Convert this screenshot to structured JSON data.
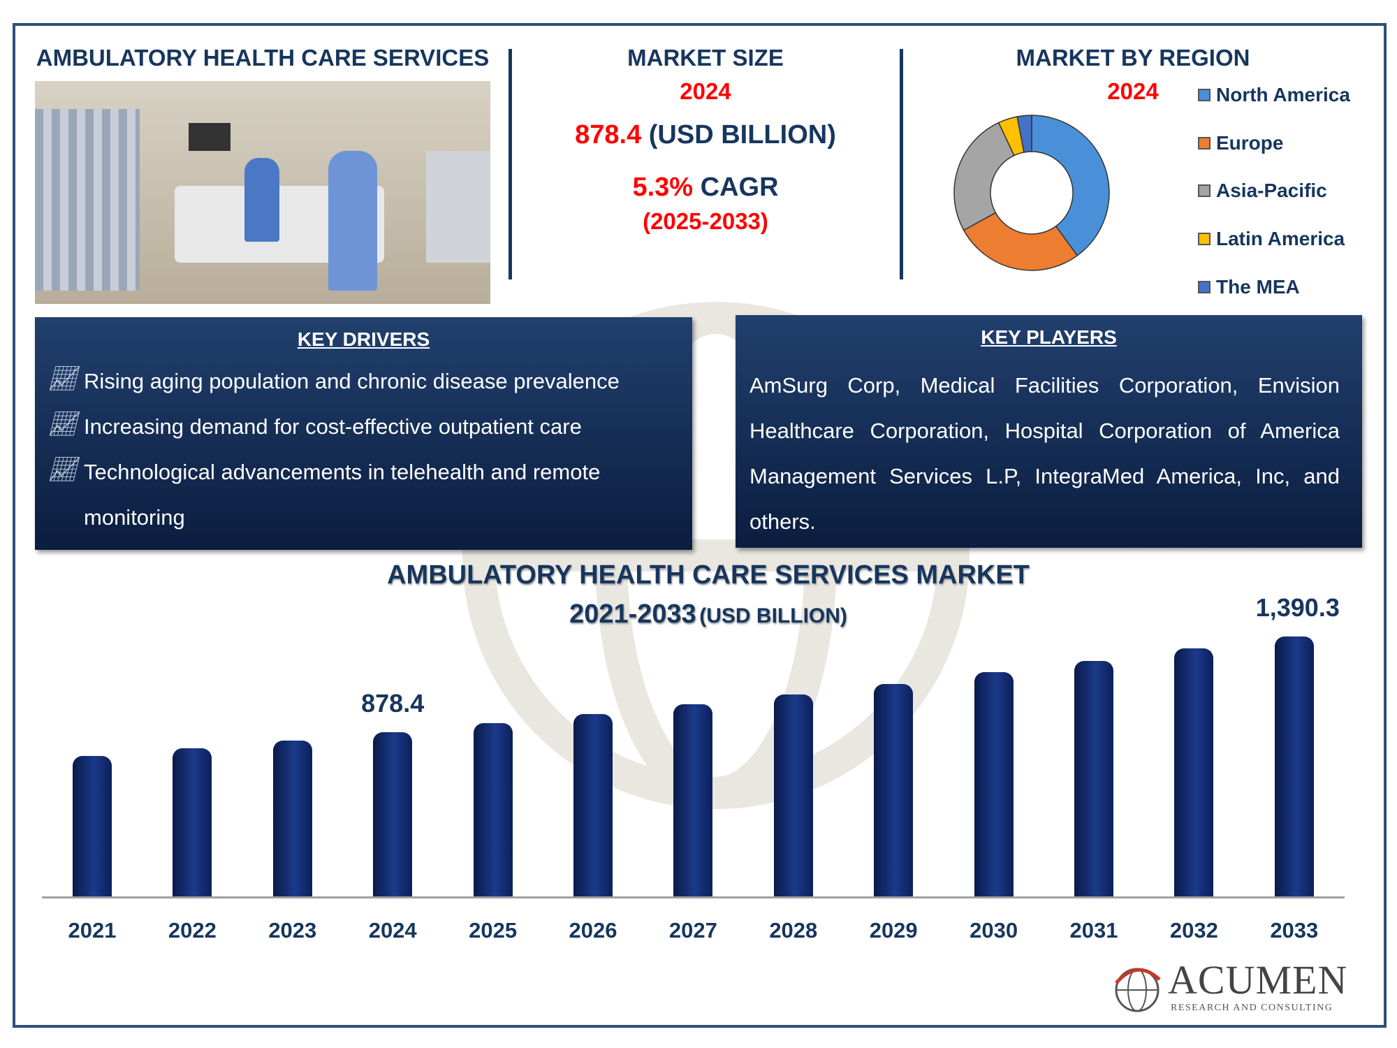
{
  "left": {
    "title": "AMBULATORY HEALTH CARE SERVICES"
  },
  "market_size": {
    "title": "MARKET SIZE",
    "year": "2024",
    "value": "878.4",
    "unit": "(USD BILLION)",
    "cagr_value": "5.3%",
    "cagr_label": "CAGR",
    "period": "(2025-2033)"
  },
  "region": {
    "title": "MARKET BY REGION",
    "year": "2024",
    "legend": [
      {
        "label": "North America",
        "color": "#4a90d9"
      },
      {
        "label": "Europe",
        "color": "#ed7d31"
      },
      {
        "label": "Asia-Pacific",
        "color": "#a5a5a5"
      },
      {
        "label": "Latin America",
        "color": "#ffc000"
      },
      {
        "label": "The MEA",
        "color": "#4472c4"
      }
    ]
  },
  "drivers": {
    "title": "KEY DRIVERS",
    "items": [
      "Rising aging population and chronic disease prevalence",
      "Increasing demand for cost-effective outpatient care",
      "Technological advancements in telehealth and remote",
      "monitoring"
    ]
  },
  "players": {
    "title": "KEY PLAYERS",
    "text": "AmSurg Corp, Medical Facilities Corporation, Envision Healthcare Corporation, Hospital Corporation of America Management Services L.P, IntegraMed America, Inc, and others."
  },
  "logo": {
    "name": "ACUMEN",
    "tagline": "RESEARCH AND CONSULTING"
  },
  "chart_data": [
    {
      "type": "pie",
      "title": "MARKET BY REGION 2024",
      "categories": [
        "North America",
        "Europe",
        "Asia-Pacific",
        "Latin America",
        "The MEA"
      ],
      "values": [
        40,
        27,
        26,
        4,
        3
      ]
    },
    {
      "type": "bar",
      "title": "AMBULATORY HEALTH CARE SERVICES MARKET",
      "subtitle_years": "2021-2033",
      "subtitle_unit": "(USD BILLION)",
      "categories": [
        "2021",
        "2022",
        "2023",
        "2024",
        "2025",
        "2026",
        "2027",
        "2028",
        "2029",
        "2030",
        "2031",
        "2032",
        "2033"
      ],
      "values": [
        752,
        792,
        834,
        878.4,
        925,
        974,
        1026,
        1080,
        1137,
        1198,
        1261,
        1328,
        1390.3
      ],
      "data_labels": {
        "2024": "878.4",
        "2033": "1,390.3"
      },
      "ylim": [
        0,
        1390.3
      ],
      "grid": false
    }
  ]
}
